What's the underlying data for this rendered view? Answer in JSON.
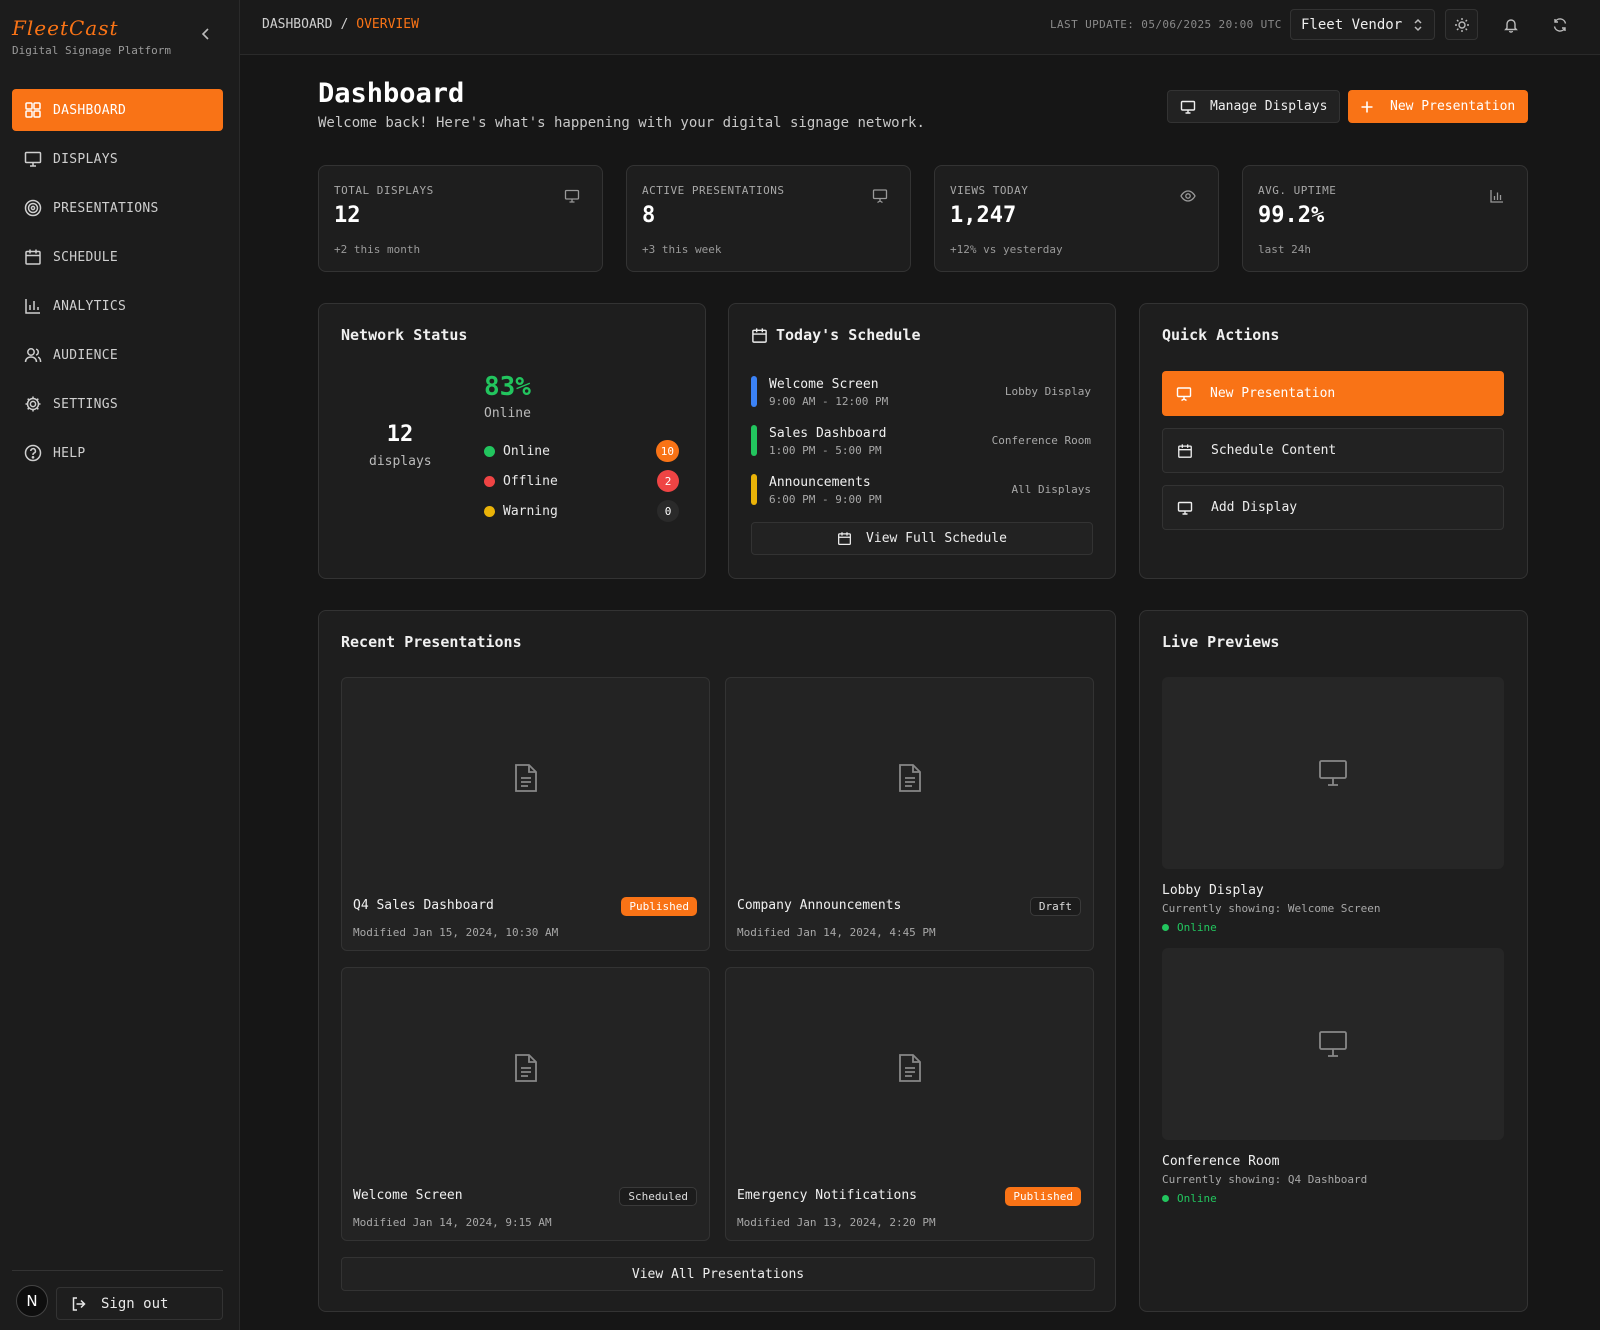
{
  "brand": {
    "logo": "FleetCast",
    "tagline": "Digital Signage Platform",
    "accent": "#f97316"
  },
  "sidebar": {
    "items": [
      {
        "label": "DASHBOARD",
        "icon": "grid-icon",
        "active": true
      },
      {
        "label": "DISPLAYS",
        "icon": "monitor-icon"
      },
      {
        "label": "PRESENTATIONS",
        "icon": "target-icon"
      },
      {
        "label": "SCHEDULE",
        "icon": "calendar-icon"
      },
      {
        "label": "ANALYTICS",
        "icon": "bar-chart-icon"
      },
      {
        "label": "AUDIENCE",
        "icon": "users-icon"
      },
      {
        "label": "SETTINGS",
        "icon": "gear-icon"
      },
      {
        "label": "HELP",
        "icon": "help-icon"
      }
    ],
    "avatar_initial": "N",
    "sign_out": "Sign out"
  },
  "topbar": {
    "breadcrumb": {
      "root": "DASHBOARD",
      "sep": "/",
      "current": "OVERVIEW"
    },
    "last_update": "LAST UPDATE: 05/06/2025 20:00 UTC",
    "vendor": "Fleet Vendor"
  },
  "header": {
    "title": "Dashboard",
    "subtitle": "Welcome back! Here's what's happening with your digital signage network.",
    "manage_displays": "Manage Displays",
    "new_presentation": "New Presentation"
  },
  "stats": [
    {
      "label": "TOTAL DISPLAYS",
      "value": "12",
      "note": "+2 this month",
      "icon": "monitor-icon"
    },
    {
      "label": "ACTIVE PRESENTATIONS",
      "value": "8",
      "note": "+3 this week",
      "icon": "presentation-icon"
    },
    {
      "label": "VIEWS TODAY",
      "value": "1,247",
      "note": "+12% vs yesterday",
      "icon": "eye-icon"
    },
    {
      "label": "AVG. UPTIME",
      "value": "99.2%",
      "note": "last 24h",
      "icon": "bar-chart-icon"
    }
  ],
  "network": {
    "title": "Network Status",
    "total": "12",
    "total_label": "displays",
    "percent": "83%",
    "percent_label": "Online",
    "rows": [
      {
        "label": "Online",
        "count": "10",
        "color": "#22c55e",
        "badge": "#f97316"
      },
      {
        "label": "Offline",
        "count": "2",
        "color": "#ef4444",
        "badge": "#ef4444"
      },
      {
        "label": "Warning",
        "count": "0",
        "color": "#eab308",
        "badge": "#2a2a2a"
      }
    ]
  },
  "schedule": {
    "title": "Today's Schedule",
    "items": [
      {
        "name": "Welcome Screen",
        "time": "9:00 AM - 12:00 PM",
        "location": "Lobby Display",
        "color": "#3b82f6"
      },
      {
        "name": "Sales Dashboard",
        "time": "1:00 PM - 5:00 PM",
        "location": "Conference Room",
        "color": "#22c55e"
      },
      {
        "name": "Announcements",
        "time": "6:00 PM - 9:00 PM",
        "location": "All Displays",
        "color": "#eab308"
      }
    ],
    "view_full": "View Full Schedule"
  },
  "quick_actions": {
    "title": "Quick Actions",
    "items": [
      {
        "label": "New Presentation",
        "icon": "presentation-icon"
      },
      {
        "label": "Schedule Content",
        "icon": "calendar-icon"
      },
      {
        "label": "Add Display",
        "icon": "monitor-icon"
      }
    ]
  },
  "recent": {
    "title": "Recent Presentations",
    "items": [
      {
        "name": "Q4 Sales Dashboard",
        "modified": "Modified Jan 15, 2024, 10:30 AM",
        "status": "Published"
      },
      {
        "name": "Company Announcements",
        "modified": "Modified Jan 14, 2024, 4:45 PM",
        "status": "Draft"
      },
      {
        "name": "Welcome Screen",
        "modified": "Modified Jan 14, 2024, 9:15 AM",
        "status": "Scheduled"
      },
      {
        "name": "Emergency Notifications",
        "modified": "Modified Jan 13, 2024, 2:20 PM",
        "status": "Published"
      }
    ],
    "view_all": "View All Presentations"
  },
  "live": {
    "title": "Live Previews",
    "items": [
      {
        "name": "Lobby Display",
        "showing": "Currently showing: Welcome Screen",
        "status": "Online"
      },
      {
        "name": "Conference Room",
        "showing": "Currently showing: Q4 Dashboard",
        "status": "Online"
      }
    ]
  }
}
